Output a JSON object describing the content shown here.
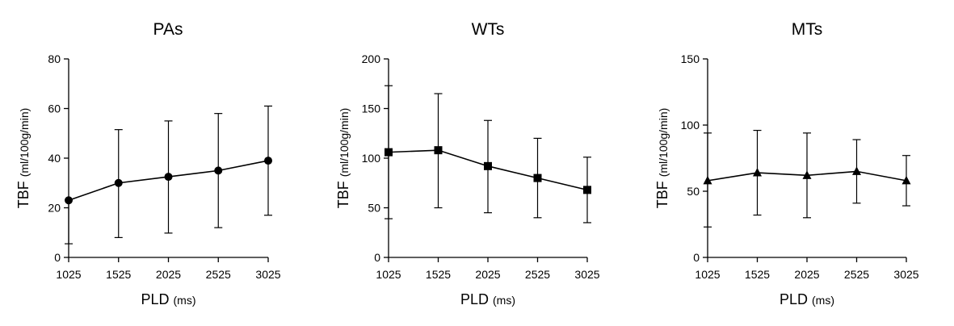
{
  "chart_data": [
    {
      "type": "line",
      "title": "PAs",
      "xlabel": "PLD",
      "xlabel_unit": "(ms)",
      "ylabel": "TBF",
      "ylabel_unit": "(ml/100g/min)",
      "categories": [
        "1025",
        "1525",
        "2025",
        "2525",
        "3025"
      ],
      "yticks": [
        0,
        20,
        40,
        60,
        80
      ],
      "ylim": [
        0,
        80
      ],
      "marker": "circle",
      "series": [
        {
          "values": [
            23,
            30,
            32.5,
            35,
            39
          ],
          "error_low": [
            5.5,
            8,
            9.8,
            12,
            17
          ],
          "error_high": [
            null,
            51.5,
            55,
            58,
            61
          ]
        }
      ]
    },
    {
      "type": "line",
      "title": "WTs",
      "xlabel": "PLD",
      "xlabel_unit": "(ms)",
      "ylabel": "TBF",
      "ylabel_unit": "(ml/100g/min)",
      "categories": [
        "1025",
        "1525",
        "2025",
        "2525",
        "3025"
      ],
      "yticks": [
        0,
        50,
        100,
        150,
        200
      ],
      "ylim": [
        0,
        200
      ],
      "marker": "square",
      "series": [
        {
          "values": [
            106,
            108,
            92,
            80,
            68
          ],
          "error_low": [
            39,
            50,
            45,
            40,
            35
          ],
          "error_high": [
            173,
            165,
            138,
            120,
            101
          ]
        }
      ]
    },
    {
      "type": "line",
      "title": "MTs",
      "xlabel": "PLD",
      "xlabel_unit": "(ms)",
      "ylabel": "TBF",
      "ylabel_unit": "(ml/100g/min)",
      "categories": [
        "1025",
        "1525",
        "2025",
        "2525",
        "3025"
      ],
      "yticks": [
        0,
        50,
        100,
        150
      ],
      "ylim": [
        0,
        150
      ],
      "marker": "triangle",
      "series": [
        {
          "values": [
            58,
            64,
            62,
            65,
            58
          ],
          "error_low": [
            23,
            32,
            30,
            41,
            39
          ],
          "error_high": [
            94,
            96,
            94,
            89,
            77
          ]
        }
      ]
    }
  ]
}
